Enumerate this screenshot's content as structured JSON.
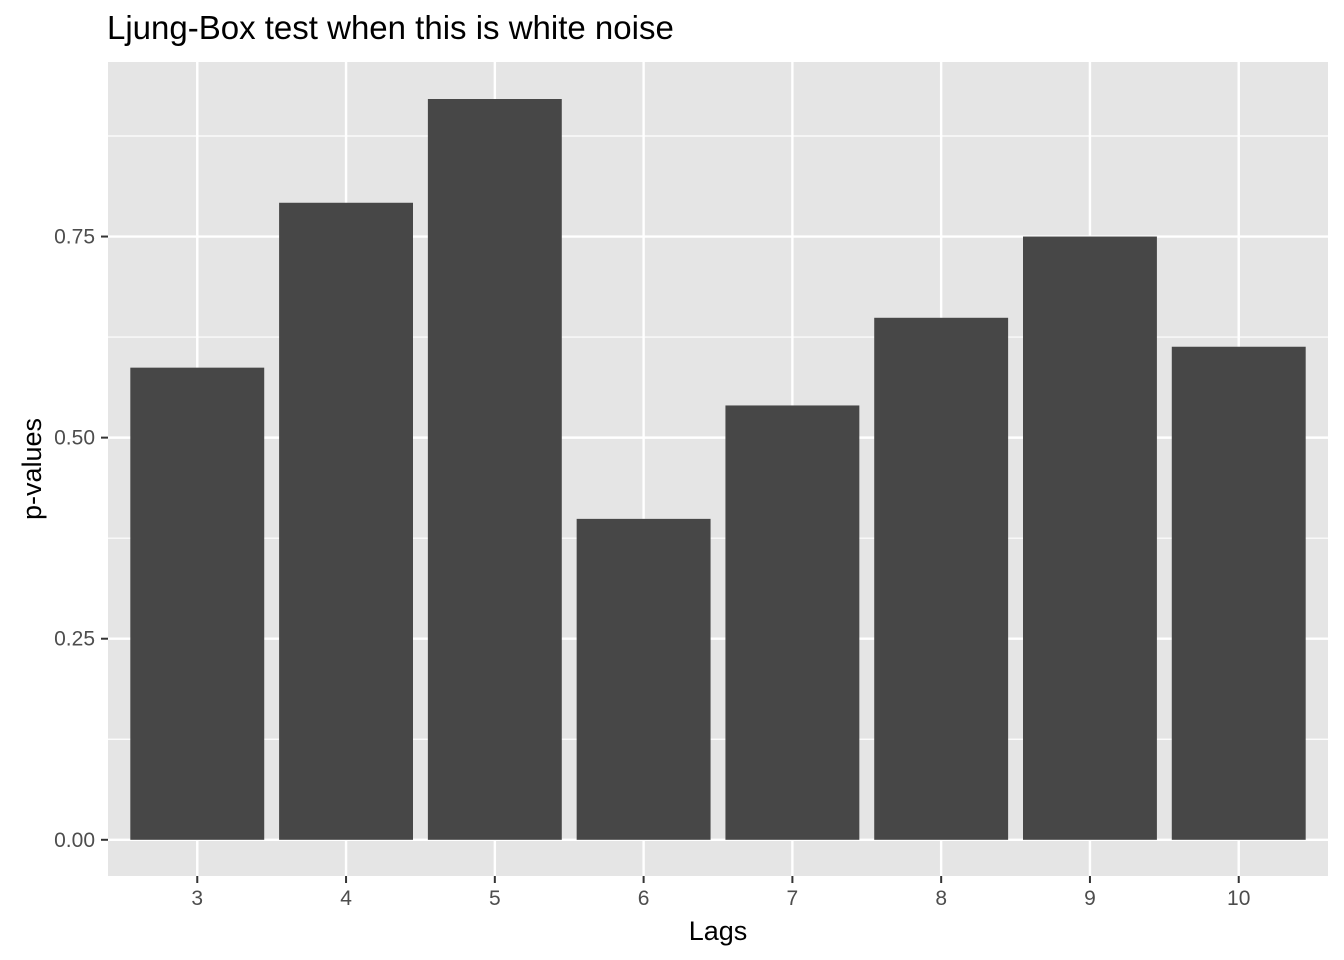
{
  "chart_data": {
    "type": "bar",
    "title": "Ljung-Box test when this is white noise",
    "xlabel": "Lags",
    "ylabel": "p-values",
    "categories": [
      "3",
      "4",
      "5",
      "6",
      "7",
      "8",
      "9",
      "10"
    ],
    "values": [
      0.587,
      0.792,
      0.921,
      0.399,
      0.54,
      0.649,
      0.75,
      0.613
    ],
    "ylim": [
      -0.045,
      0.967
    ],
    "yticks": [
      0,
      0.25,
      0.5,
      0.75
    ],
    "ytick_labels": [
      "0.00",
      "0.25",
      "0.50",
      "0.75"
    ],
    "grid": true,
    "legend": "none",
    "colors": {
      "bar": "#474747",
      "panel": "#e5e5e5",
      "grid": "#ffffff",
      "tick_text": "#4d4d4d",
      "tick_mark": "#333333"
    }
  }
}
